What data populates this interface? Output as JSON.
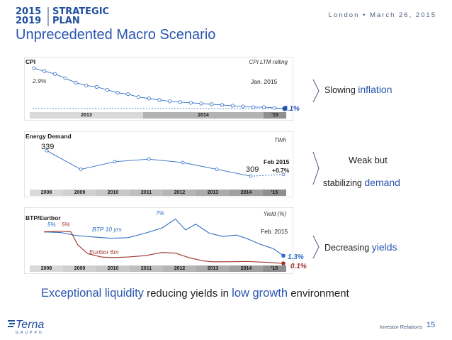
{
  "header": {
    "logo_years_top": "2015",
    "logo_years_bottom": "2019",
    "logo_word_top": "STRATEGIC",
    "logo_word_bottom": "PLAN",
    "location": "London • March 26, 2015",
    "title": "Unprecedented Macro Scenario"
  },
  "cpi_panel": {
    "title": "CPI",
    "unit": "CPI LTM rolling",
    "start_label": "2.9%",
    "end_date": "Jan. 2015",
    "end_label": "0.1%",
    "timeline": [
      "2013",
      "2014",
      "'15"
    ],
    "side_text": "Slowing ",
    "side_accent": "inflation"
  },
  "energy_panel": {
    "title": "Energy Demand",
    "unit": "TWh",
    "start_label": "339",
    "end_label": "309",
    "end_date": "Feb 2015",
    "end_change": "+0.7%",
    "timeline": [
      "2008",
      "2009",
      "2010",
      "2011",
      "2012",
      "2013",
      "2014",
      "'15"
    ],
    "side_text_1": "Weak but",
    "side_text_2": "stabilizing ",
    "side_accent": "demand"
  },
  "rates_panel": {
    "title": "BTP/Euribor",
    "unit": "Yield (%)",
    "start_label_1": "5%",
    "start_label_2": "5%",
    "peak_label": "7%",
    "btp_label": "BTP 10 yrs",
    "euribor_label": "Euribor 6m",
    "end_date": "Feb. 2015",
    "btp_end": "1.3%",
    "euribor_end": "0.1%",
    "timeline": [
      "2008",
      "2009",
      "2010",
      "2011",
      "2012",
      "2013",
      "2014",
      "'15"
    ],
    "side_text": "Decreasing ",
    "side_accent": "yields"
  },
  "footer": {
    "l1": "Exceptional liquidity",
    "l2": " reducing yields in ",
    "l3": "low growth",
    "l4": " environment",
    "company": "Terna",
    "company_sub": "GRUPPO",
    "section": "Investor Relations",
    "page": "15"
  },
  "colors": {
    "accent": "#2a55b0",
    "series": "#2e6dc2",
    "euribor": "#a0322a",
    "bar": "#d9d9d9"
  },
  "chart_data": [
    {
      "type": "line",
      "title": "CPI",
      "ylabel": "CPI LTM rolling",
      "x": [
        "2013-01",
        "2013-02",
        "2013-03",
        "2013-04",
        "2013-05",
        "2013-06",
        "2013-07",
        "2013-08",
        "2013-09",
        "2013-10",
        "2013-11",
        "2013-12",
        "2014-01",
        "2014-02",
        "2014-03",
        "2014-04",
        "2014-05",
        "2014-06",
        "2014-07",
        "2014-08",
        "2014-09",
        "2014-10",
        "2014-11",
        "2014-12",
        "2015-01"
      ],
      "values": [
        2.9,
        2.7,
        2.5,
        2.2,
        1.9,
        1.7,
        1.6,
        1.4,
        1.2,
        1.1,
        0.9,
        0.8,
        0.7,
        0.6,
        0.55,
        0.5,
        0.45,
        0.4,
        0.35,
        0.3,
        0.25,
        0.2,
        0.2,
        0.15,
        0.1
      ],
      "ylim": [
        0,
        3.2
      ]
    },
    {
      "type": "line",
      "title": "Energy Demand",
      "ylabel": "TWh",
      "x": [
        "2008",
        "2009",
        "2010",
        "2011",
        "2012",
        "2013",
        "2014",
        "Feb 2015"
      ],
      "values": [
        339,
        317,
        326,
        329,
        325,
        317,
        309,
        311
      ],
      "ylim": [
        300,
        345
      ]
    },
    {
      "type": "line",
      "title": "BTP/Euribor",
      "ylabel": "Yield (%)",
      "series": [
        {
          "name": "BTP 10 yrs",
          "x": [
            2008.0,
            2008.5,
            2009.0,
            2009.5,
            2010.0,
            2010.5,
            2011.0,
            2011.5,
            2011.9,
            2012.2,
            2012.5,
            2012.9,
            2013.3,
            2013.7,
            2014.0,
            2014.4,
            2014.8,
            2015.1
          ],
          "values": [
            5.0,
            4.9,
            4.4,
            4.2,
            4.0,
            4.1,
            4.8,
            5.6,
            7.0,
            5.3,
            6.2,
            4.8,
            4.3,
            4.5,
            4.0,
            3.1,
            2.4,
            1.3
          ]
        },
        {
          "name": "Euribor 6m",
          "x": [
            2008.0,
            2008.5,
            2008.8,
            2009.0,
            2009.3,
            2009.7,
            2010.0,
            2010.5,
            2011.0,
            2011.5,
            2011.9,
            2012.3,
            2012.7,
            2013.0,
            2013.5,
            2014.0,
            2014.5,
            2015.1
          ],
          "values": [
            5.0,
            5.1,
            5.0,
            3.0,
            1.6,
            1.1,
            1.0,
            1.1,
            1.3,
            1.8,
            1.7,
            1.0,
            0.5,
            0.35,
            0.35,
            0.4,
            0.3,
            0.1
          ]
        }
      ],
      "ylim": [
        0,
        7.5
      ]
    }
  ]
}
